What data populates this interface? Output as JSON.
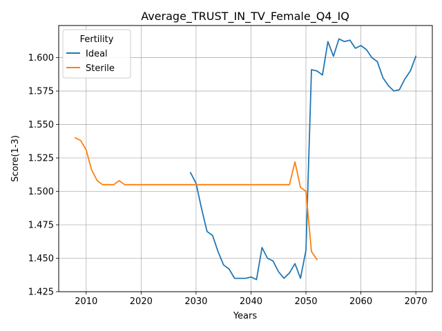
{
  "chart_data": {
    "type": "line",
    "title": "Average_TRUST_IN_TV_Female_Q4_IQ",
    "xlabel": "Years",
    "ylabel": "Score(1-3)",
    "xlim": [
      2005,
      2073
    ],
    "ylim": [
      1.425,
      1.624
    ],
    "x_ticks": [
      2010,
      2020,
      2030,
      2040,
      2050,
      2060,
      2070
    ],
    "y_ticks": [
      1.425,
      1.45,
      1.475,
      1.5,
      1.525,
      1.55,
      1.575,
      1.6
    ],
    "x_tick_labels": [
      "2010",
      "2020",
      "2030",
      "2040",
      "2050",
      "2060",
      "2070"
    ],
    "y_tick_labels": [
      "1.425",
      "1.450",
      "1.475",
      "1.500",
      "1.525",
      "1.550",
      "1.575",
      "1.600"
    ],
    "grid": true,
    "legend": {
      "title": "Fertility",
      "placement": "top-left"
    },
    "series": [
      {
        "name": "Ideal",
        "color": "#1f77b4",
        "x": [
          2029,
          2030,
          2031,
          2032,
          2033,
          2034,
          2035,
          2036,
          2037,
          2038,
          2039,
          2040,
          2041,
          2042,
          2043,
          2044,
          2045,
          2046,
          2047,
          2048,
          2049,
          2050,
          2051,
          2052,
          2053,
          2054,
          2055,
          2056,
          2057,
          2058,
          2059,
          2060,
          2061,
          2062,
          2063,
          2064,
          2065,
          2066,
          2067,
          2068,
          2069,
          2070
        ],
        "y": [
          1.514,
          1.506,
          1.487,
          1.47,
          1.467,
          1.455,
          1.445,
          1.442,
          1.435,
          1.435,
          1.435,
          1.436,
          1.434,
          1.458,
          1.45,
          1.448,
          1.44,
          1.435,
          1.439,
          1.446,
          1.435,
          1.456,
          1.591,
          1.59,
          1.587,
          1.612,
          1.601,
          1.614,
          1.612,
          1.613,
          1.607,
          1.609,
          1.606,
          1.6,
          1.597,
          1.585,
          1.579,
          1.575,
          1.576,
          1.584,
          1.59,
          1.601
        ]
      },
      {
        "name": "Sterile",
        "color": "#ff7f0e",
        "x": [
          2008,
          2009,
          2010,
          2011,
          2012,
          2013,
          2014,
          2015,
          2016,
          2017,
          2018,
          2019,
          2020,
          2021,
          2022,
          2023,
          2024,
          2025,
          2026,
          2027,
          2028,
          2029,
          2030,
          2031,
          2032,
          2033,
          2034,
          2035,
          2036,
          2037,
          2038,
          2039,
          2040,
          2041,
          2042,
          2043,
          2044,
          2045,
          2046,
          2047,
          2048,
          2049,
          2050,
          2051,
          2052
        ],
        "y": [
          1.54,
          1.538,
          1.531,
          1.516,
          1.508,
          1.505,
          1.505,
          1.505,
          1.508,
          1.505,
          1.505,
          1.505,
          1.505,
          1.505,
          1.505,
          1.505,
          1.505,
          1.505,
          1.505,
          1.505,
          1.505,
          1.505,
          1.505,
          1.505,
          1.505,
          1.505,
          1.505,
          1.505,
          1.505,
          1.505,
          1.505,
          1.505,
          1.505,
          1.505,
          1.505,
          1.505,
          1.505,
          1.505,
          1.505,
          1.505,
          1.522,
          1.503,
          1.5,
          1.455,
          1.449
        ]
      }
    ]
  }
}
